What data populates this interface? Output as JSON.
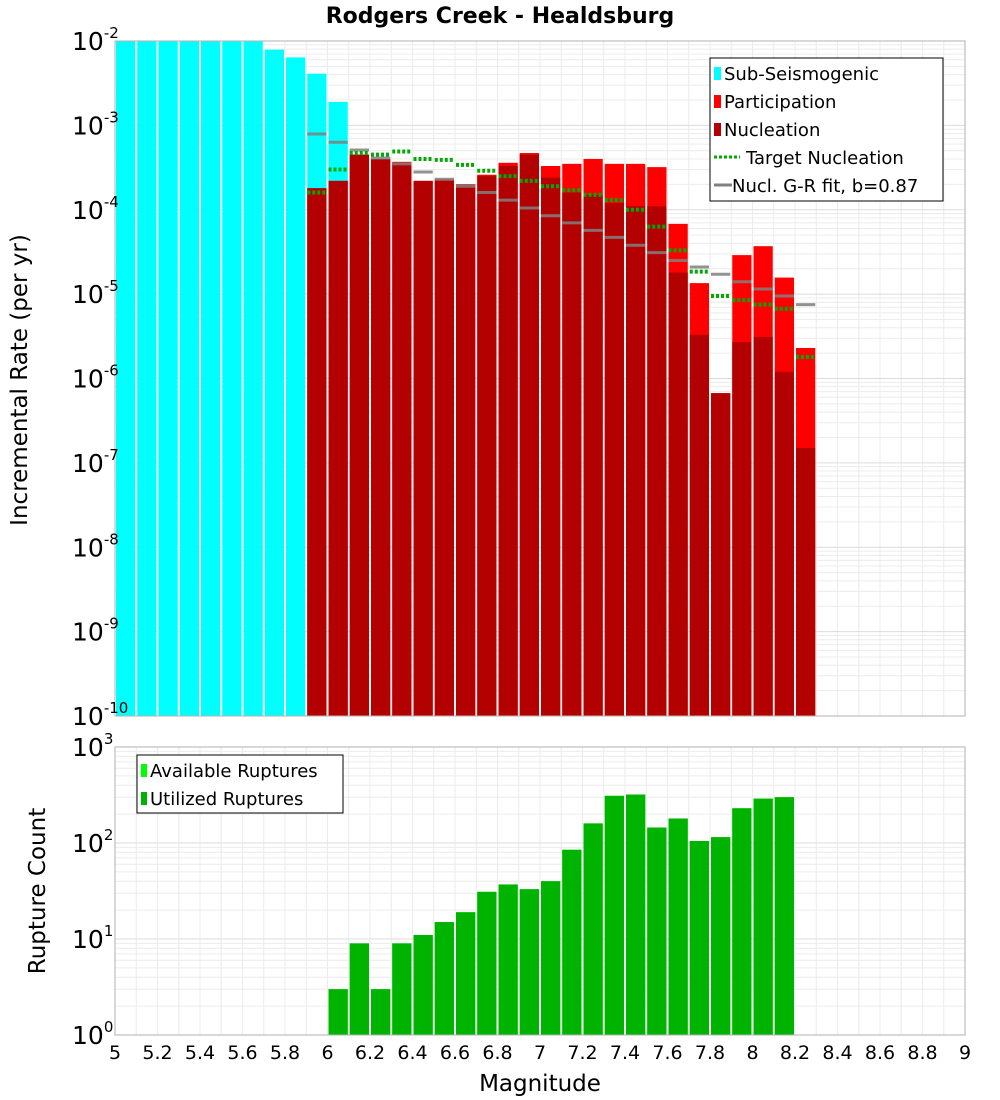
{
  "chart_data": [
    {
      "type": "bar",
      "title": "Rodgers Creek - Healdsburg",
      "xlabel": "Magnitude",
      "ylabel": "Incremental Rate (per yr)",
      "xlim": [
        5,
        9
      ],
      "yscale": "log",
      "ylim": [
        1e-10,
        0.01
      ],
      "yticks": [
        {
          "base": "10",
          "exp": "-10"
        },
        {
          "base": "10",
          "exp": "-9"
        },
        {
          "base": "10",
          "exp": "-8"
        },
        {
          "base": "10",
          "exp": "-7"
        },
        {
          "base": "10",
          "exp": "-6"
        },
        {
          "base": "10",
          "exp": "-5"
        },
        {
          "base": "10",
          "exp": "-4"
        },
        {
          "base": "10",
          "exp": "-3"
        },
        {
          "base": "10",
          "exp": "-2"
        }
      ],
      "bin_width": 0.1,
      "sub_seismogenic": {
        "name": "Sub-Seismogenic",
        "color": "#00ffff",
        "x": [
          5.05,
          5.15,
          5.25,
          5.35,
          5.45,
          5.55,
          5.65,
          5.75,
          5.85,
          5.95,
          6.05
        ],
        "values": [
          0.01,
          0.01,
          0.01,
          0.01,
          0.01,
          0.01,
          0.01,
          0.0079,
          0.0064,
          0.0041,
          0.0019
        ]
      },
      "participation": {
        "name": "Participation",
        "color": "#ff0000",
        "x": [
          5.95,
          6.05,
          6.15,
          6.25,
          6.35,
          6.45,
          6.55,
          6.65,
          6.75,
          6.85,
          6.95,
          7.05,
          7.15,
          7.25,
          7.35,
          7.45,
          7.55,
          7.65,
          7.75,
          7.85,
          7.95,
          8.05,
          8.15,
          8.25
        ],
        "values": [
          0.00018,
          0.00022,
          0.00045,
          0.0004,
          0.00037,
          0.00022,
          0.00023,
          0.0002,
          0.00026,
          0.00036,
          0.00047,
          0.00033,
          0.00035,
          0.0004,
          0.00035,
          0.00035,
          0.00032,
          6.8e-05,
          1.35e-05,
          6.7e-07,
          2.9e-05,
          3.7e-05,
          1.57e-05,
          2.3e-06
        ]
      },
      "nucleation": {
        "name": "Nucleation",
        "color": "#b30000",
        "x": [
          5.95,
          6.05,
          6.15,
          6.25,
          6.35,
          6.45,
          6.55,
          6.65,
          6.75,
          6.85,
          6.95,
          7.05,
          7.15,
          7.25,
          7.35,
          7.45,
          7.55,
          7.65,
          7.75,
          7.85,
          7.95,
          8.05,
          8.15,
          8.25
        ],
        "values": [
          0.00018,
          0.00022,
          0.00045,
          0.0004,
          0.00036,
          0.00022,
          0.00022,
          0.0002,
          0.00025,
          0.00033,
          0.00045,
          0.00024,
          0.00016,
          0.00015,
          0.00012,
          0.00011,
          0.00011,
          1.8e-05,
          3.3e-06,
          6.7e-07,
          2.7e-06,
          3.1e-06,
          1.2e-06,
          1.5e-07
        ]
      },
      "target_nucleation": {
        "name": "Target Nucleation",
        "color": "#00aa00",
        "x": [
          5.95,
          6.05,
          6.15,
          6.25,
          6.35,
          6.45,
          6.55,
          6.65,
          6.75,
          6.85,
          6.95,
          7.05,
          7.15,
          7.25,
          7.35,
          7.45,
          7.55,
          7.65,
          7.75,
          7.85,
          7.95,
          8.05,
          8.15,
          8.25
        ],
        "values": [
          0.00016,
          0.0003,
          0.00047,
          0.00045,
          0.00049,
          0.0004,
          0.00039,
          0.00034,
          0.00029,
          0.00025,
          0.00022,
          0.00019,
          0.00017,
          0.00015,
          0.00013,
          0.0001,
          6.3e-05,
          3.3e-05,
          1.85e-05,
          9.5e-06,
          8.5e-06,
          7.5e-06,
          6.7e-06,
          1.8e-06
        ]
      },
      "gr_fit": {
        "name": "Nucl. G-R fit, b=0.87",
        "color": "#808080",
        "x": [
          5.95,
          6.05,
          6.15,
          6.25,
          6.35,
          6.45,
          6.55,
          6.65,
          6.75,
          6.85,
          6.95,
          7.05,
          7.15,
          7.25,
          7.35,
          7.45,
          7.55,
          7.65,
          7.75,
          7.85,
          7.95,
          8.05,
          8.15,
          8.25
        ],
        "values": [
          0.00079,
          0.00063,
          0.00051,
          0.00041,
          0.00035,
          0.00028,
          0.00023,
          0.00019,
          0.00016,
          0.00013,
          0.000105,
          8.5e-05,
          7e-05,
          5.7e-05,
          4.7e-05,
          3.8e-05,
          3.1e-05,
          2.5e-05,
          2.1e-05,
          1.72e-05,
          1.4e-05,
          1.15e-05,
          9.5e-06,
          7.5e-06
        ]
      },
      "legend": [
        "Sub-Seismogenic",
        "Participation",
        "Nucleation",
        "Target Nucleation",
        "Nucl. G-R fit, b=0.87"
      ],
      "legend_position": "top-right"
    },
    {
      "type": "bar",
      "xlabel": "Magnitude",
      "ylabel": "Rupture Count",
      "yscale": "log",
      "ylim": [
        1,
        1000
      ],
      "yticks": [
        {
          "base": "10",
          "exp": "0"
        },
        {
          "base": "10",
          "exp": "1"
        },
        {
          "base": "10",
          "exp": "2"
        },
        {
          "base": "10",
          "exp": "3"
        }
      ],
      "xticks": [
        "5",
        "5.2",
        "5.4",
        "5.6",
        "5.8",
        "6",
        "6.2",
        "6.4",
        "6.6",
        "6.8",
        "7",
        "7.2",
        "7.4",
        "7.6",
        "7.8",
        "8",
        "8.2",
        "8.4",
        "8.6",
        "8.8",
        "9"
      ],
      "available": {
        "name": "Available Ruptures",
        "color": "#00ff00",
        "x": [
          6.05,
          6.15,
          6.25,
          6.35,
          6.45,
          6.55,
          6.65,
          6.75,
          6.85,
          6.95,
          7.05,
          7.15,
          7.25,
          7.35,
          7.45,
          7.55,
          7.65,
          7.75,
          7.85,
          7.95,
          8.05,
          8.15
        ],
        "values": [
          3,
          9,
          3,
          9,
          11,
          15,
          19,
          31,
          37,
          33,
          40,
          85,
          160,
          310,
          320,
          145,
          180,
          105,
          115,
          230,
          290,
          300
        ]
      },
      "utilized": {
        "name": "Utilized Ruptures",
        "color": "#00b300",
        "x": [
          6.05,
          6.15,
          6.25,
          6.35,
          6.45,
          6.55,
          6.65,
          6.75,
          6.85,
          6.95,
          7.05,
          7.15,
          7.25,
          7.35,
          7.45,
          7.55,
          7.65,
          7.75,
          7.85,
          7.95,
          8.05,
          8.15
        ],
        "values": [
          3,
          9,
          3,
          9,
          11,
          15,
          19,
          31,
          37,
          33,
          40,
          85,
          160,
          310,
          320,
          145,
          180,
          105,
          115,
          230,
          290,
          300
        ]
      },
      "legend": [
        "Available Ruptures",
        "Utilized Ruptures"
      ],
      "legend_position": "top-left"
    }
  ]
}
